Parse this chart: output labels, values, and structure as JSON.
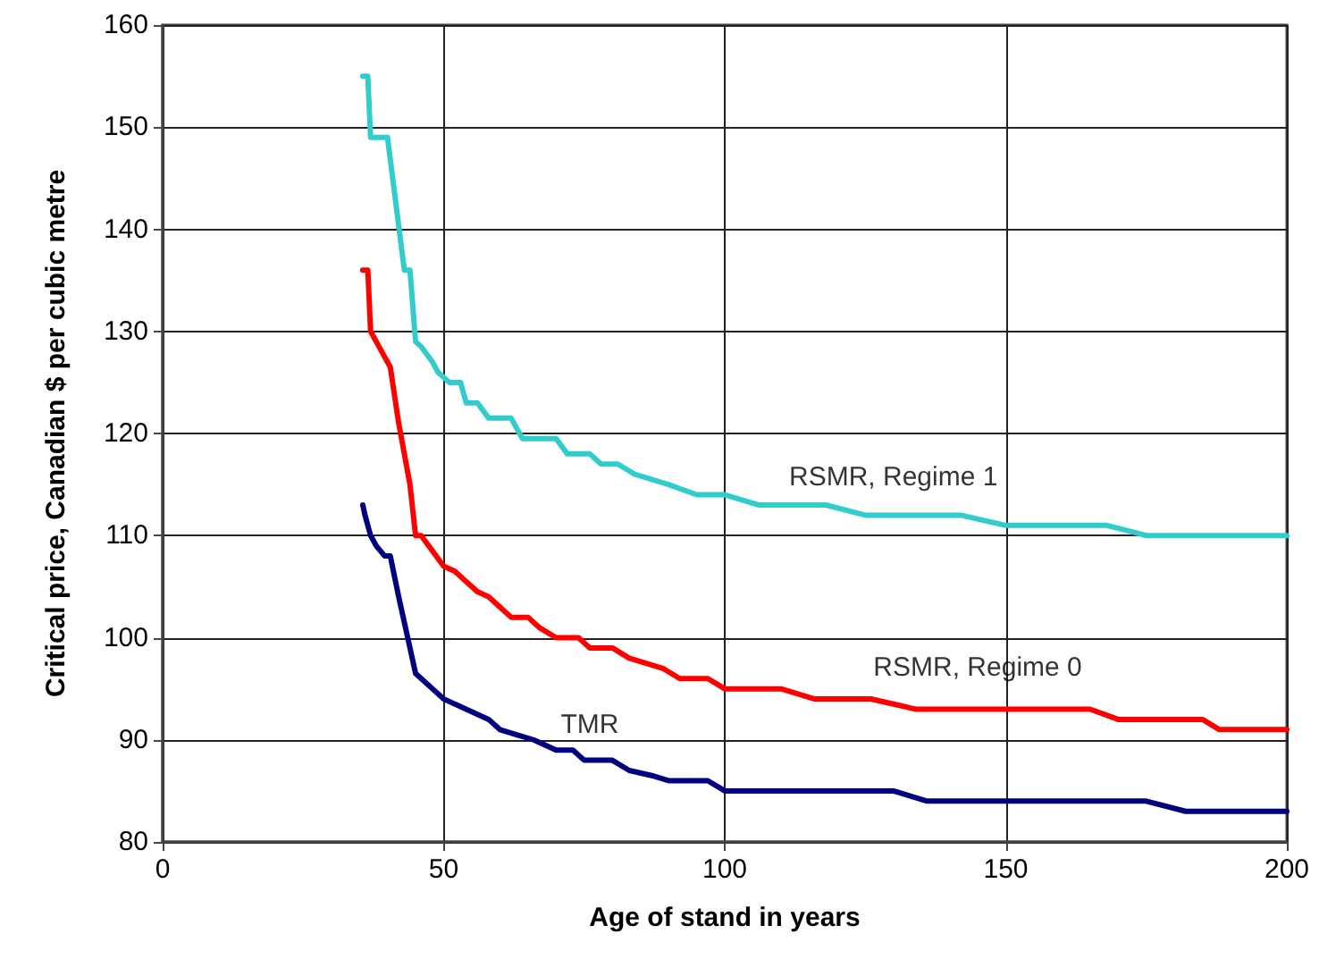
{
  "chart_data": {
    "type": "line",
    "xlabel": "Age of stand in years",
    "ylabel": "Critical price, Canadian $ per cubic metre",
    "xlim": [
      0,
      200
    ],
    "xticks": [
      0,
      50,
      100,
      150,
      200
    ],
    "ylim": [
      80,
      160
    ],
    "yticks": [
      80,
      90,
      100,
      110,
      120,
      130,
      140,
      150,
      160
    ],
    "grid": true,
    "marker": "none",
    "line_style": "solid",
    "series": [
      {
        "name": "RSMR, Regime 1",
        "color": "#33cccc",
        "x": [
          35.6,
          36.5,
          37,
          40,
          43,
          44,
          45,
          46,
          48,
          49,
          51,
          53,
          54,
          56,
          58,
          62,
          64,
          70,
          72,
          76,
          78,
          81,
          84,
          90,
          95,
          100,
          106,
          118,
          125,
          142,
          150,
          168,
          175,
          200
        ],
        "values": [
          155,
          155,
          149,
          149,
          136,
          136,
          129,
          128.5,
          127,
          126,
          125,
          125,
          123,
          123,
          121.5,
          121.5,
          119.5,
          119.5,
          118,
          118,
          117,
          117,
          116,
          115,
          114,
          114,
          113,
          113,
          112,
          112,
          111,
          111,
          110,
          110
        ]
      },
      {
        "name": "RSMR, Regime 0",
        "color": "#ff0000",
        "x": [
          35.6,
          36.5,
          37,
          39,
          40.5,
          42,
          44,
          45,
          46,
          48,
          50,
          52,
          54,
          56,
          58,
          60,
          62,
          65,
          67,
          70,
          74,
          76,
          80,
          83,
          86,
          89,
          92,
          97,
          100,
          110,
          116,
          126,
          134,
          150,
          165,
          170,
          185,
          188,
          200
        ],
        "values": [
          136,
          136,
          130,
          128,
          126.5,
          121,
          115,
          110,
          110,
          108.5,
          107,
          106.5,
          105.5,
          104.5,
          104,
          103,
          102,
          102,
          101,
          100,
          100,
          99,
          99,
          98,
          97.5,
          97,
          96,
          96,
          95,
          95,
          94,
          94,
          93,
          93,
          93,
          92,
          92,
          91,
          91
        ]
      },
      {
        "name": "TMR",
        "color": "#000080",
        "x": [
          35.6,
          36,
          37,
          38,
          39.5,
          40.5,
          42,
          44,
          45,
          46,
          48,
          50,
          52,
          54,
          56,
          58,
          60,
          63,
          66,
          70,
          73,
          75,
          80,
          83,
          87,
          90,
          97,
          100,
          130,
          136,
          150,
          175,
          182,
          200
        ],
        "values": [
          113,
          112,
          110,
          109,
          108,
          108,
          104,
          99,
          96.5,
          96,
          95,
          94,
          93.5,
          93,
          92.5,
          92,
          91,
          90.5,
          90,
          89,
          89,
          88,
          88,
          87,
          86.5,
          86,
          86,
          85,
          85,
          84,
          84,
          84,
          83,
          83
        ]
      }
    ]
  }
}
